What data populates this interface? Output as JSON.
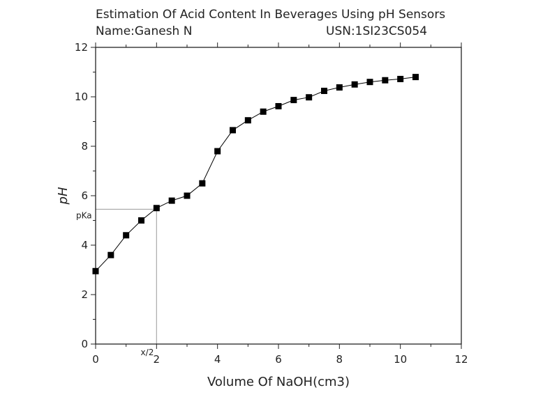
{
  "header": {
    "title": "Estimation Of Acid Content In Beverages Using pH Sensors",
    "name": "Name:Ganesh N",
    "usn": "USN:1SI23CS054"
  },
  "chart_data": {
    "type": "line",
    "xlabel": "Volume Of NaOH(cm3)",
    "ylabel": "pH",
    "xlim": [
      0,
      12
    ],
    "ylim": [
      0,
      12
    ],
    "xticks": [
      0,
      2,
      4,
      6,
      8,
      10,
      12
    ],
    "yticks": [
      0,
      2,
      4,
      6,
      8,
      10,
      12
    ],
    "grid": false,
    "marker": "square",
    "series_color": "#000000",
    "guide_color": "#aaaaaa",
    "series": [
      {
        "x": [
          0,
          0.5,
          1,
          1.5,
          2,
          2.5,
          3,
          3.5,
          4,
          4.5,
          5,
          5.5,
          6,
          6.5,
          7,
          7.5,
          8,
          8.5,
          9,
          9.5,
          10,
          10.5
        ],
        "y": [
          2.95,
          3.6,
          4.4,
          5.0,
          5.5,
          5.8,
          6.0,
          6.5,
          7.8,
          8.65,
          9.05,
          9.4,
          9.62,
          9.87,
          9.98,
          10.24,
          10.38,
          10.5,
          10.6,
          10.67,
          10.72,
          10.8
        ]
      }
    ],
    "annotations": {
      "pka_label": "pKa",
      "pka_value": 5.45,
      "half_label": "x/2",
      "half_value": 2
    }
  }
}
